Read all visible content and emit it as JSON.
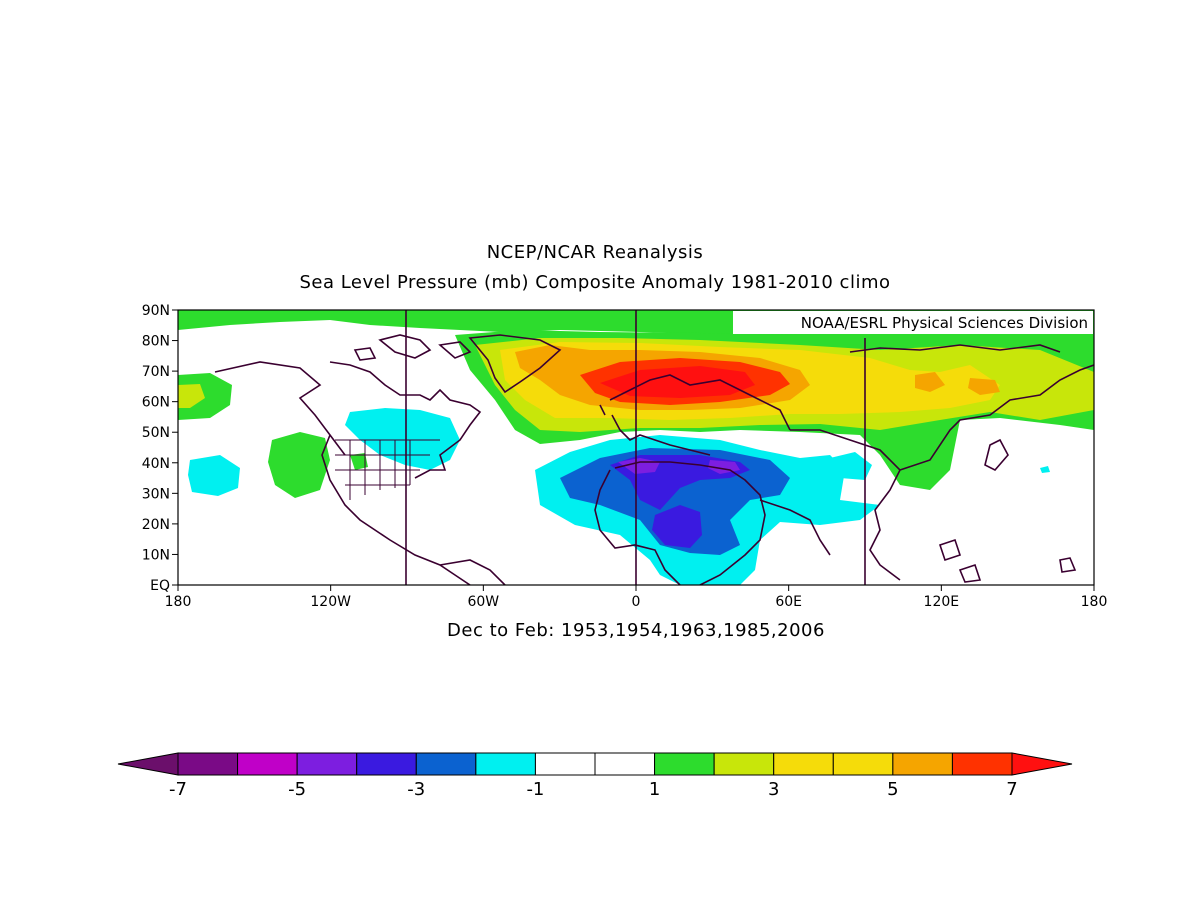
{
  "title_line1": "NCEP/NCAR Reanalysis",
  "title_line2": "Sea Level Pressure (mb) Composite Anomaly 1981-2010 climo",
  "credit": "NOAA/ESRL Physical Sciences Division",
  "caption": "Dec to Feb: 1953,1954,1963,1985,2006",
  "lat_ticks": [
    "90N",
    "80N",
    "70N",
    "60N",
    "50N",
    "40N",
    "30N",
    "20N",
    "10N",
    "EQ"
  ],
  "lon_ticks": [
    "180",
    "120W",
    "60W",
    "0",
    "60E",
    "120E",
    "180"
  ],
  "colorbar": {
    "colors": [
      "#6b0f6b",
      "#7a0a86",
      "#c000c8",
      "#7d1ee0",
      "#3a1ae0",
      "#0b62d0",
      "#00f0f0",
      "#ffffff",
      "#ffffff",
      "#2ddc2d",
      "#c8e60a",
      "#f5dc0a",
      "#f5dc0a",
      "#f5a500",
      "#ff3200",
      "#ff1010"
    ],
    "labels": [
      "-7",
      "-5",
      "-3",
      "-1",
      "1",
      "3",
      "5",
      "7"
    ]
  },
  "fill_colors": {
    "green": "#2ddc2d",
    "yellowgreen": "#c8e60a",
    "yellow": "#f5dc0a",
    "orange": "#f5a500",
    "redorange": "#ff3200",
    "red": "#ff1010",
    "cyan": "#00f0f0",
    "blue": "#0b62d0",
    "darkblue": "#3a1ae0",
    "violet": "#7d1ee0"
  }
}
